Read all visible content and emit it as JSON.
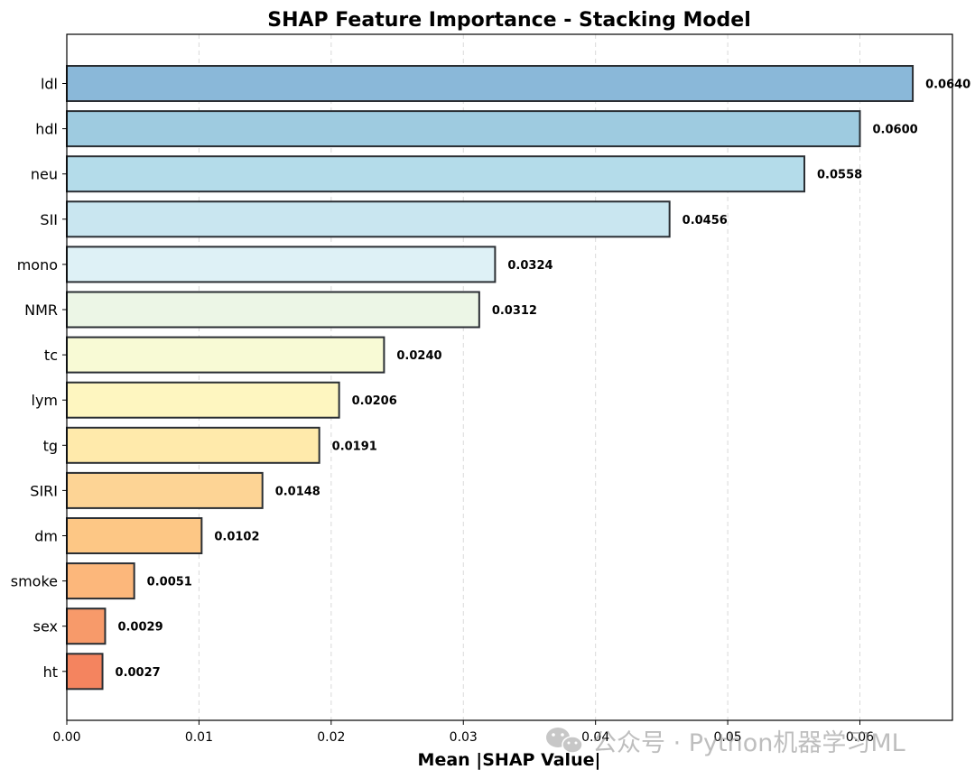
{
  "chart_data": {
    "type": "bar",
    "orientation": "horizontal",
    "title": "SHAP Feature Importance - Stacking Model",
    "xlabel": "Mean |SHAP Value|",
    "ylabel": "",
    "xlim": [
      0,
      0.067
    ],
    "xticks": [
      0.0,
      0.01,
      0.02,
      0.03,
      0.04,
      0.05,
      0.06
    ],
    "xtick_labels": [
      "0.00",
      "0.01",
      "0.02",
      "0.03",
      "0.04",
      "0.05",
      "0.06"
    ],
    "grid": "vertical-dashed",
    "categories": [
      "ldl",
      "hdl",
      "neu",
      "SII",
      "mono",
      "NMR",
      "tc",
      "lym",
      "tg",
      "SIRI",
      "dm",
      "smoke",
      "sex",
      "ht"
    ],
    "values": [
      0.064,
      0.06,
      0.0558,
      0.0456,
      0.0324,
      0.0312,
      0.024,
      0.0206,
      0.0191,
      0.0148,
      0.0102,
      0.0051,
      0.0029,
      0.0027
    ],
    "value_labels": [
      "0.0640",
      "0.0600",
      "0.0558",
      "0.0456",
      "0.0324",
      "0.0312",
      "0.0240",
      "0.0206",
      "0.0191",
      "0.0148",
      "0.0102",
      "0.0051",
      "0.0029",
      "0.0027"
    ],
    "colors": [
      "#8ab8d9",
      "#9ecbe0",
      "#b4dcea",
      "#c9e6f0",
      "#def1f6",
      "#ecf6e6",
      "#f8fad5",
      "#fef6c0",
      "#ffeaab",
      "#fdd495",
      "#fdc785",
      "#fcb77b",
      "#f79a6a",
      "#f4845f"
    ],
    "edge_color": "#2a2e33"
  },
  "watermark": {
    "text": "公众号 · Python机器学习ML",
    "icon": "wechat-icon"
  }
}
